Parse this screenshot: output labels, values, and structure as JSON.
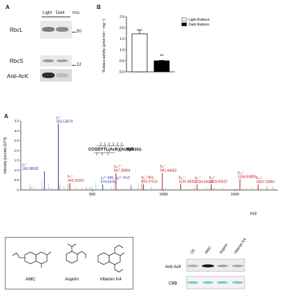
{
  "panels": {
    "a_top": "A",
    "b_top": "B",
    "a_mid": "A"
  },
  "western": {
    "lanes": [
      "Light",
      "Dark"
    ],
    "kda": "KDa",
    "rbcl": {
      "label": "RbcL",
      "marker": "50"
    },
    "rbcs": {
      "label": "RbcS",
      "marker": "12"
    },
    "ack": {
      "label": "Anti-AcK"
    }
  },
  "chart_data": [
    {
      "type": "bar",
      "categories": [
        "Light Rubisco",
        "Dark Rubisco"
      ],
      "values": [
        1.72,
        0.5
      ],
      "errors": [
        0.18,
        0.02
      ],
      "colors": [
        "#ffffff",
        "#000000"
      ],
      "ylabel": "Rubisco activity (μmol·min⁻¹·mg⁻¹)",
      "ylim": [
        0,
        2.5
      ],
      "yticks": [
        "0.0",
        "0.5",
        "1.0",
        "1.5",
        "2.0",
        "2.5"
      ],
      "annotations": [
        "**"
      ],
      "legend": [
        "Light Rubisco",
        "Dark Rubisco"
      ],
      "legend_position": "top-right"
    },
    {
      "type": "bar",
      "xlabel": "m/z",
      "ylabel": "Intensity [counts] (10^3)",
      "xlim": [
        0,
        1800
      ],
      "ylim": [
        0,
        3.5
      ],
      "xticks": [
        "500",
        "1000",
        "1500"
      ],
      "yticks": [
        "0",
        "0.5",
        "1.0",
        "1.5",
        "2.0",
        "2.5",
        "3.0",
        "3.5"
      ],
      "peak_labels": [
        {
          "ion": "y₁⁺",
          "mz": "166.08592",
          "x": 166.09,
          "y": 0.95,
          "color": "#1a3e9a"
        },
        {
          "ion": "y₂⁺",
          "mz": "263.13879",
          "x": 263.14,
          "y": 3.35,
          "color": "#1a3e9a"
        },
        {
          "ion": "b₃⁺",
          "mz": "343.16251",
          "x": 343.16,
          "y": 0.35,
          "color": "#c0141c"
        },
        {
          "ion": "y₅²⁺-NH₃, y₅²⁺-H₂O",
          "mz": "574.24761",
          "x": 574.25,
          "y": 0.28,
          "color": "#1a3e9a"
        },
        {
          "ion": "b₁₂²⁺",
          "mz": "667.28864",
          "x": 667.29,
          "y": 0.85,
          "color": "#c0141c"
        },
        {
          "ion": "b₈⁺-NH₃",
          "mz": "859.37512",
          "x": 859.38,
          "y": 0.3,
          "color": "#c0141c"
        },
        {
          "ion": "b₉⁺",
          "mz": "991.44653",
          "x": 991.45,
          "y": 0.85,
          "color": "#c0141c"
        },
        {
          "ion": "b₁₀⁺",
          "mz": "1120.48303",
          "x": 1120.48,
          "y": 0.3,
          "color": "#c0141c"
        },
        {
          "ion": "b₁₁⁺",
          "mz": "1234.53625",
          "x": 1234.54,
          "y": 0.28,
          "color": "#c0141c"
        },
        {
          "ion": "b₁₂⁺",
          "mz": "1333.60522",
          "x": 1333.61,
          "y": 0.3,
          "color": "#c0141c"
        },
        {
          "ion": "b₁₃⁺",
          "mz": "1534.64893",
          "x": 1534.65,
          "y": 0.55,
          "color": "#c0141c"
        },
        {
          "ion": "b₁₄⁺",
          "mz": "1662.73059",
          "x": 1662.73,
          "y": 0.28,
          "color": "#c0141c"
        }
      ],
      "sequence": "CCGDYTL(AcK)(AcK)R",
      "site_label": "(AcK201)"
    }
  ],
  "compounds": [
    "AMC",
    "Aspirin",
    "Vitamin K4"
  ],
  "blot2": {
    "lanes": [
      "CK",
      "AMC",
      "Aspirin",
      "Vitamin K4"
    ],
    "rows": [
      "Anti-AcK",
      "CBB"
    ]
  }
}
